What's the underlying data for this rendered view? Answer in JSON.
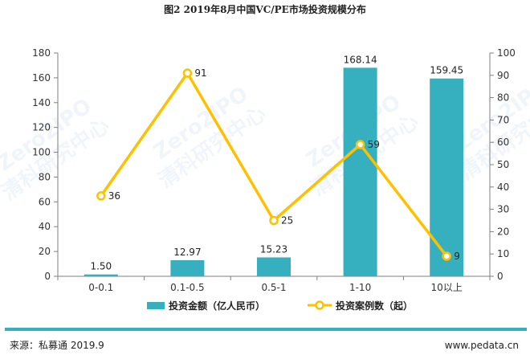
{
  "chart_data": {
    "type": "bar",
    "title": "图2  2019年8月中国VC/PE市场投资规模分布",
    "categories": [
      "0-0.1",
      "0.1-0.5",
      "0.5-1",
      "1-10",
      "10以上"
    ],
    "series": [
      {
        "name": "投资金额（亿人民币）",
        "type": "bar",
        "axis": "left",
        "color": "#36b0bf",
        "values": [
          1.5,
          12.97,
          15.23,
          168.14,
          159.45
        ],
        "labels": [
          "1.50",
          "12.97",
          "15.23",
          "168.14",
          "159.45"
        ]
      },
      {
        "name": "投资案例数（起）",
        "type": "line",
        "axis": "right",
        "color": "#ffc000",
        "values": [
          36,
          91,
          25,
          59,
          9
        ],
        "labels": [
          "36",
          "91",
          "25",
          "59",
          "9"
        ]
      }
    ],
    "y_left": {
      "min": 0,
      "max": 180,
      "step": 20,
      "ticks": [
        "0",
        "20",
        "40",
        "60",
        "80",
        "100",
        "120",
        "140",
        "160",
        "180"
      ]
    },
    "y_right": {
      "min": 0,
      "max": 100,
      "step": 10,
      "ticks": [
        "0",
        "10",
        "20",
        "30",
        "40",
        "50",
        "60",
        "70",
        "80",
        "90",
        "100"
      ]
    },
    "grid": false,
    "legend": "bottom"
  },
  "footer": {
    "source": "来源：私募通 2019.9",
    "website": "www.pedata.cn",
    "bar_color": "#36b0bf"
  },
  "watermark": {
    "text": "Zero2IPO",
    "subtext": "清科研究中心"
  }
}
